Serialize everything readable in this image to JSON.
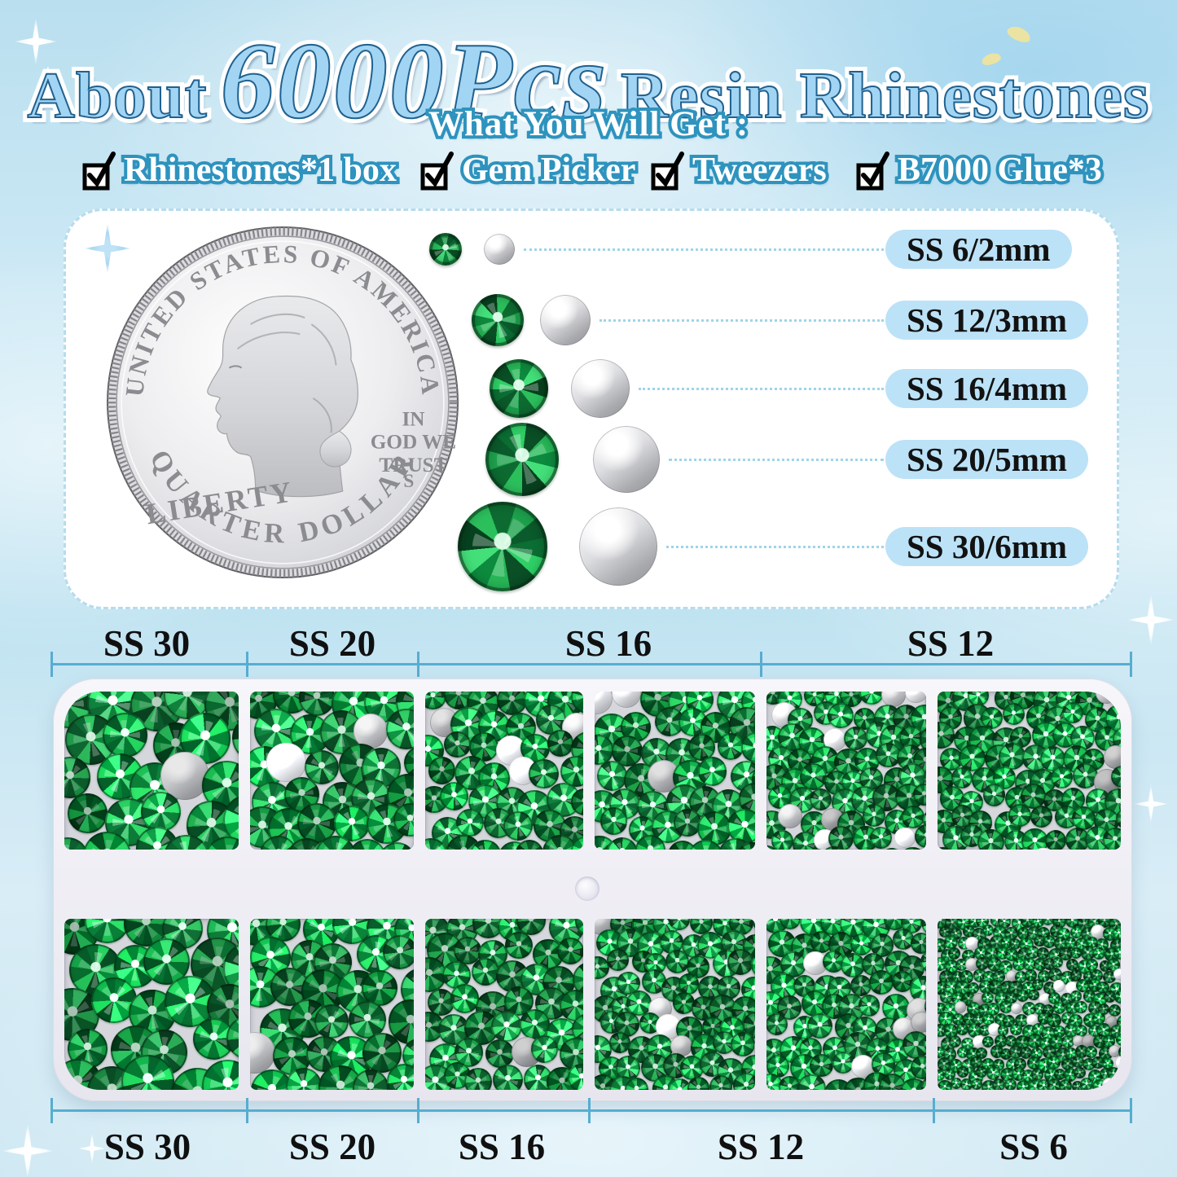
{
  "title": {
    "prefix": "About",
    "count": "6000Pcs",
    "suffix": "Resin Rhinestones"
  },
  "subtitle": "What You Will Get :",
  "includes": [
    {
      "label": "Rhinestones*1 box"
    },
    {
      "label": "Gem Picker"
    },
    {
      "label": "Tweezers"
    },
    {
      "label": "B7000 Glue*3"
    }
  ],
  "coin": {
    "top_text": "UNITED STATES OF AMERICA",
    "left_text": "LIBERTY",
    "motto_lines": [
      "IN",
      "GOD WE",
      "TRUST"
    ],
    "mint_mark": "S",
    "bottom_text": "QUARTER DOLLAR"
  },
  "size_chart": {
    "rows": [
      {
        "label": "SS 6/2mm"
      },
      {
        "label": "SS 12/3mm"
      },
      {
        "label": "SS 16/4mm"
      },
      {
        "label": "SS 20/5mm"
      },
      {
        "label": "SS 30/6mm"
      }
    ]
  },
  "tray": {
    "top_labels": [
      {
        "label": "SS 30"
      },
      {
        "label": "SS 20"
      },
      {
        "label": "SS 16"
      },
      {
        "label": "SS 12"
      }
    ],
    "bottom_labels": [
      {
        "label": "SS 30"
      },
      {
        "label": "SS 20"
      },
      {
        "label": "SS 16"
      },
      {
        "label": "SS 12"
      },
      {
        "label": "SS 6"
      }
    ]
  },
  "colors": {
    "title_fill": "#a2d5f3",
    "title_outline": "#20618f",
    "text_outline_blue": "#2e93be",
    "pill_blue": "#bce2f7",
    "ruler_blue": "#57add0",
    "gem_green_bright": "#2fd166",
    "gem_green_dark": "#0a4f26",
    "panel_bg": "#ffffff",
    "tray_bg": "#f1eff5"
  }
}
